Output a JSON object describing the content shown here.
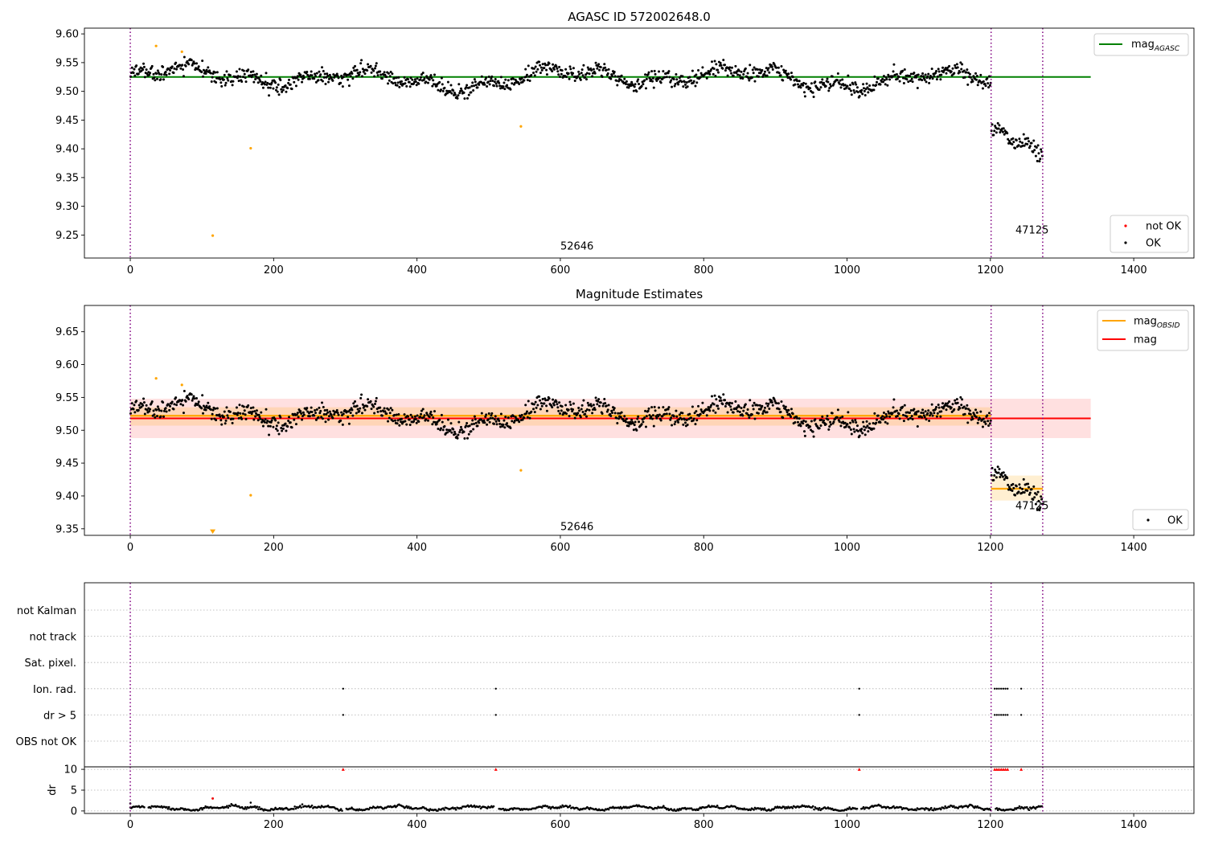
{
  "chart_data": [
    {
      "type": "scatter",
      "title": "AGASC ID 572002648.0",
      "xlim": [
        -64,
        1484
      ],
      "ylim": [
        9.21,
        9.61
      ],
      "xticks": [
        0,
        200,
        400,
        600,
        800,
        1000,
        1200,
        1400
      ],
      "yticks": [
        9.25,
        9.3,
        9.35,
        9.4,
        9.45,
        9.5,
        9.55,
        9.6
      ],
      "ytick_labels": [
        "9.25",
        "9.30",
        "9.35",
        "9.40",
        "9.45",
        "9.50",
        "9.55",
        "9.60"
      ],
      "obsid_boundaries": [
        0,
        1201,
        1273
      ],
      "obsid_labels": [
        {
          "text": "52646",
          "x": 600,
          "y": 9.225
        },
        {
          "text": "47125",
          "x": 1235,
          "y": 9.253
        }
      ],
      "reference_lines": [
        {
          "name": "mag_AGASC",
          "value": 9.525,
          "x": [
            0,
            1340
          ],
          "color": "#008000"
        }
      ],
      "segments": [
        {
          "x": [
            0,
            1201
          ],
          "center": 9.523,
          "amp": 0.022,
          "noise": 0.012
        },
        {
          "x": [
            1201,
            1273
          ],
          "start": 9.435,
          "end": 9.393,
          "noise": 0.012
        }
      ],
      "outliers": [
        {
          "x": 36,
          "y": 9.579
        },
        {
          "x": 72,
          "y": 9.569
        },
        {
          "x": 115,
          "y": 9.249
        },
        {
          "x": 168,
          "y": 9.401
        },
        {
          "x": 545,
          "y": 9.439
        }
      ],
      "legend_lines": [
        {
          "label": "mag",
          "sub": "AGASC",
          "color": "#008000"
        }
      ],
      "legend_points": [
        {
          "label": "not OK",
          "color": "#ff0000"
        },
        {
          "label": "OK",
          "color": "#000000"
        }
      ],
      "grid": false,
      "legend_placement": "top-right, bottom-right"
    },
    {
      "type": "scatter",
      "title": "Magnitude Estimates",
      "xlim": [
        -64,
        1484
      ],
      "ylim": [
        9.34,
        9.69
      ],
      "xticks": [
        0,
        200,
        400,
        600,
        800,
        1000,
        1200,
        1400
      ],
      "yticks": [
        9.35,
        9.4,
        9.45,
        9.5,
        9.55,
        9.6,
        9.65
      ],
      "ytick_labels": [
        "9.35",
        "9.40",
        "9.45",
        "9.50",
        "9.55",
        "9.60",
        "9.65"
      ],
      "obsid_boundaries": [
        0,
        1201,
        1273
      ],
      "obsid_labels": [
        {
          "text": "52646",
          "x": 600,
          "y": 9.348
        },
        {
          "text": "47125",
          "x": 1235,
          "y": 9.38
        }
      ],
      "mag": {
        "value": 9.518,
        "x": [
          0,
          1340
        ],
        "band": [
          9.488,
          9.548
        ],
        "color": "#ff0000"
      },
      "mag_obsid": [
        {
          "x": [
            0,
            1201
          ],
          "value": 9.522,
          "band": [
            9.507,
            9.535
          ]
        },
        {
          "x": [
            1201,
            1273
          ],
          "value": 9.411,
          "band": [
            9.393,
            9.431
          ]
        }
      ],
      "segments": [
        {
          "x": [
            0,
            1201
          ],
          "center": 9.523,
          "amp": 0.022,
          "noise": 0.012
        },
        {
          "x": [
            1201,
            1273
          ],
          "start": 9.435,
          "end": 9.393,
          "noise": 0.012
        }
      ],
      "outliers": [
        {
          "x": 36,
          "y": 9.579
        },
        {
          "x": 72,
          "y": 9.569
        },
        {
          "x": 168,
          "y": 9.401
        },
        {
          "x": 545,
          "y": 9.439
        }
      ],
      "offscale_marker": {
        "x": 115,
        "y": 9.346
      },
      "legend_lines": [
        {
          "label": "mag",
          "sub": "OBSID",
          "color": "#ffa500"
        },
        {
          "label": "mag",
          "sub": "",
          "color": "#ff0000"
        }
      ],
      "legend_points": [
        {
          "label": "OK",
          "color": "#000000"
        }
      ],
      "grid": false,
      "legend_placement": "top-right, bottom-right"
    },
    {
      "type": "scatter",
      "title": "",
      "xlim": [
        -64,
        1484
      ],
      "xticks": [
        0,
        200,
        400,
        600,
        800,
        1000,
        1200,
        1400
      ],
      "flag_categories": [
        "not Kalman",
        "not track",
        "Sat. pixel.",
        "Ion. rad.",
        "dr > 5",
        "OBS not OK"
      ],
      "flag_points": {
        "Ion. rad.": [
          297,
          510,
          1017,
          1206,
          1209,
          1212,
          1215,
          1218,
          1221,
          1224,
          1243
        ],
        "dr > 5": [
          297,
          510,
          1017,
          1206,
          1209,
          1212,
          1215,
          1218,
          1221,
          1224,
          1243
        ]
      },
      "grid": "horizontal dotted"
    },
    {
      "type": "scatter",
      "title": "",
      "ylabel": "dr",
      "xlim": [
        -64,
        1484
      ],
      "ylim": [
        -0.6,
        10.6
      ],
      "xticks": [
        0,
        200,
        400,
        600,
        800,
        1000,
        1200,
        1400
      ],
      "yticks": [
        0,
        5,
        10
      ],
      "ytick_labels": [
        "0",
        "5",
        "10"
      ],
      "spikes": [
        {
          "x": 0,
          "y": 1.8
        },
        {
          "x": 115,
          "y": 3.0
        },
        {
          "x": 168,
          "y": 2.0
        }
      ],
      "capped_x": [
        297,
        510,
        1017,
        1206,
        1209,
        1212,
        1215,
        1218,
        1221,
        1224,
        1243
      ],
      "cap_value": 10,
      "grid": "horizontal dotted"
    }
  ]
}
